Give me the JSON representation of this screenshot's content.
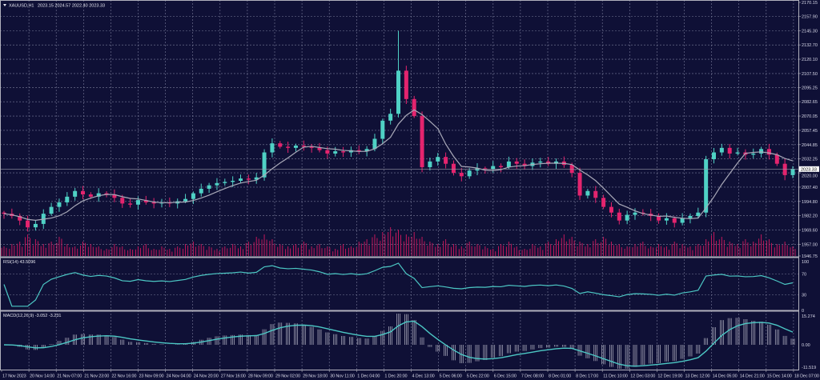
{
  "header": {
    "symbol": "XAUUSD,H1",
    "ohlc": "2023.15 2024.57 2022.40 2023.33"
  },
  "colors": {
    "background": "#0f1036",
    "grid": "#7a7c9a",
    "bull": "#4fd1c5",
    "bear": "#e4246e",
    "ma": "#a9a9b8",
    "volume": "#c2185b",
    "indicator_line": "#4cc7c4",
    "histogram": "#b8b8c8",
    "separator": "#b0b0bc"
  },
  "chart_data": [
    {
      "type": "candlestick",
      "title": "XAUUSD,H1",
      "current_price": "2023.33",
      "ylim": [
        1946.75,
        2170.15
      ],
      "y_ticks": [
        "2170.15",
        "2157.90",
        "2145.30",
        "2132.70",
        "2120.10",
        "2107.50",
        "2095.25",
        "2082.65",
        "2070.05",
        "2057.45",
        "2044.85",
        "2032.25",
        "2020.00",
        "2007.40",
        "1994.80",
        "1982.20",
        "1969.60",
        "1957.00",
        "1946.75"
      ],
      "x_ticks": [
        "17 Nov 2023",
        "20 Nov 14:00",
        "21 Nov 07:00",
        "21 Nov 23:00",
        "22 Nov 16:00",
        "23 Nov 09:00",
        "24 Nov 04:00",
        "24 Nov 20:00",
        "27 Nov 16:00",
        "28 Nov 09:00",
        "29 Nov 02:00",
        "29 Nov 18:00",
        "30 Nov 11:00",
        "1 Dec 04:00",
        "1 Dec 20:00",
        "4 Dec 13:00",
        "5 Dec 06:00",
        "5 Dec 22:00",
        "6 Dec 15:00",
        "7 Dec 08:00",
        "8 Dec 01:00",
        "8 Dec 17:00",
        "11 Dec 10:00",
        "12 Dec 03:00",
        "12 Dec 19:00",
        "13 Dec 12:00",
        "14 Dec 05:00",
        "14 Dec 21:00",
        "15 Dec 14:00",
        "18 Dec 07:00"
      ],
      "closes": [
        1984,
        1982,
        1978,
        1972,
        1975,
        1984,
        1990,
        1994,
        1999,
        2004,
        2001,
        1999,
        2002,
        2001,
        1998,
        1993,
        1992,
        1996,
        1994,
        1993,
        1994,
        1993,
        1995,
        1997,
        2002,
        2006,
        2009,
        2011,
        2012,
        2013,
        2015,
        2014,
        2016,
        2038,
        2046,
        2043,
        2042,
        2044,
        2043,
        2042,
        2040,
        2037,
        2039,
        2038,
        2040,
        2039,
        2041,
        2050,
        2066,
        2072,
        2110,
        2085,
        2070,
        2025,
        2030,
        2034,
        2028,
        2020,
        2017,
        2022,
        2024,
        2023,
        2026,
        2025,
        2030,
        2028,
        2026,
        2029,
        2030,
        2028,
        2030,
        2027,
        2020,
        2000,
        2004,
        1998,
        1990,
        1985,
        1978,
        1983,
        1985,
        1984,
        1982,
        1978,
        1980,
        1976,
        1980,
        1982,
        1985,
        2032,
        2038,
        2042,
        2037,
        2038,
        2036,
        2037,
        2041,
        2036,
        2028,
        2018,
        2023.33
      ],
      "notable_highs": {
        "50": 2145
      },
      "volume": [
        4,
        5,
        6,
        9,
        7,
        5,
        6,
        8,
        5,
        4,
        6,
        5,
        4,
        3,
        5,
        4,
        3,
        4,
        5,
        3,
        4,
        3,
        4,
        5,
        6,
        5,
        4,
        3,
        4,
        5,
        4,
        6,
        8,
        9,
        7,
        5,
        4,
        5,
        6,
        4,
        5,
        4,
        3,
        5,
        4,
        6,
        7,
        9,
        10,
        12,
        11,
        9,
        10,
        8,
        6,
        5,
        7,
        5,
        4,
        6,
        5,
        4,
        3,
        5,
        6,
        4,
        3,
        5,
        4,
        6,
        7,
        9,
        8,
        6,
        5,
        7,
        8,
        6,
        5,
        4,
        5,
        6,
        4,
        5,
        4,
        6,
        5,
        4,
        5,
        7,
        10,
        8,
        6,
        5,
        7,
        6,
        9,
        7,
        5,
        6,
        4
      ]
    },
    {
      "type": "line",
      "title": "RSI(14) 43.5096",
      "ylim": [
        0,
        100
      ],
      "y_ticks": [
        "100",
        "70",
        "30",
        "0"
      ]
    },
    {
      "type": "bar",
      "title": "MACD(12,26,9) -3.052 -3.231",
      "ylim": [
        -11.519,
        15.274
      ],
      "y_ticks": [
        "15.274",
        "0.00",
        "-11.519"
      ]
    }
  ]
}
